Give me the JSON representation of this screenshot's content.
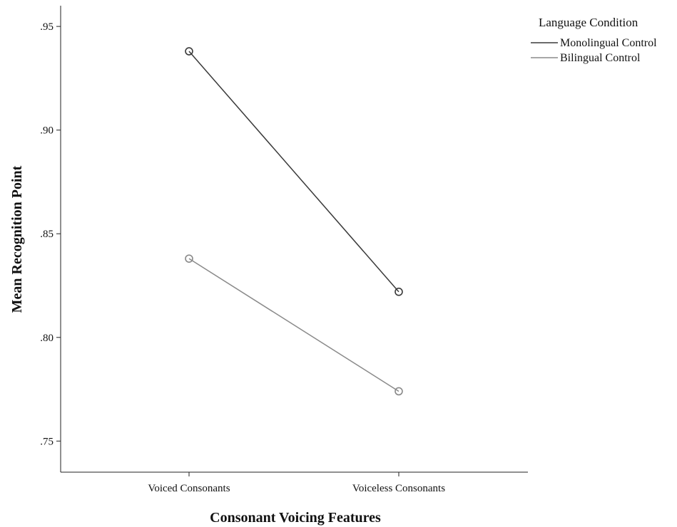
{
  "chart_data": {
    "type": "line",
    "title": "",
    "xlabel": "Consonant Voicing Features",
    "ylabel": "Mean Recognition Point",
    "categories": [
      "Voiced Consonants",
      "Voiceless Consonants"
    ],
    "y_ticks": [
      0.75,
      0.8,
      0.85,
      0.9,
      0.95
    ],
    "y_tick_labels": [
      ".75",
      ".80",
      ".85",
      ".90",
      ".95"
    ],
    "ylim": [
      0.735,
      0.96
    ],
    "grid": false,
    "legend": {
      "title": "Language Condition",
      "placement": "top-right-outside"
    },
    "series": [
      {
        "name": "Monolingual Control",
        "values": [
          0.938,
          0.822
        ],
        "color": "#3a3a3a"
      },
      {
        "name": "Bilingual Control",
        "values": [
          0.838,
          0.774
        ],
        "color": "#8a8a8a"
      }
    ]
  }
}
